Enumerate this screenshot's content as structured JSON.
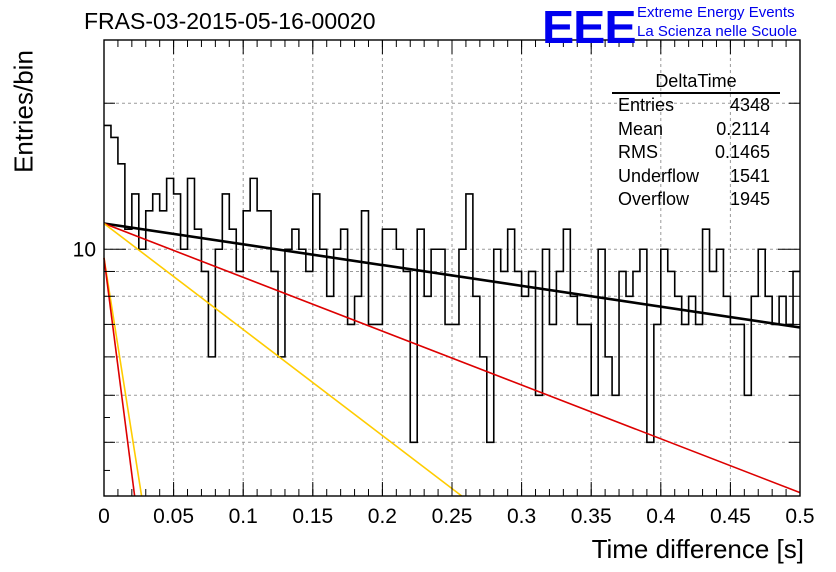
{
  "header": {
    "title": "FRAS-03-2015-05-16-00020",
    "logo_text": "EEE",
    "subtitle_line1": "Extreme Energy Events",
    "subtitle_line2": "La Scienza nelle Scuole"
  },
  "stats_box": {
    "title": "DeltaTime",
    "rows": [
      {
        "label": "Entries",
        "value": "4348"
      },
      {
        "label": "Mean",
        "value": "0.2114"
      },
      {
        "label": "RMS",
        "value": "0.1465"
      },
      {
        "label": "Underflow",
        "value": "1541"
      },
      {
        "label": "Overflow",
        "value": "1945"
      }
    ]
  },
  "colors": {
    "histogram": "#000000",
    "fit_black": "#000000",
    "fit_red": "#dd0000",
    "fit_yellow": "#ffcc00",
    "logo": "#0000ee"
  },
  "chart_data": {
    "type": "line",
    "title": "FRAS-03-2015-05-16-00020",
    "xlabel": "Time difference [s]",
    "ylabel": "Entries/bin",
    "y_scale": "log",
    "xlim": [
      0,
      0.5
    ],
    "ylim": [
      3.1,
      27
    ],
    "grid": true,
    "x_ticks": [
      "0",
      "0.05",
      "0.1",
      "0.15",
      "0.2",
      "0.25",
      "0.3",
      "0.35",
      "0.4",
      "0.45",
      "0.5"
    ],
    "y_tick_labels": [
      {
        "value": 10,
        "label": "10"
      }
    ],
    "histogram": {
      "bin_width": 0.005,
      "x_start": 0,
      "counts": [
        18,
        17,
        15,
        11,
        13,
        10,
        12,
        13,
        12,
        14,
        13,
        10,
        14,
        11,
        9,
        6,
        10,
        13,
        11,
        9,
        12,
        14,
        12,
        12,
        9,
        6,
        10,
        11,
        10,
        9,
        13,
        10,
        8,
        10,
        11,
        7,
        8,
        12,
        7,
        7,
        11,
        11,
        10,
        9,
        4,
        11,
        8,
        10,
        10,
        7,
        7,
        10,
        13,
        8,
        6,
        4,
        10,
        9,
        11,
        9,
        8,
        9,
        5,
        10,
        7,
        9,
        11,
        8,
        7,
        7,
        5,
        10,
        6,
        5,
        9,
        8,
        9,
        10,
        4,
        7,
        10,
        9,
        8,
        7,
        8,
        7,
        11,
        9,
        10,
        8,
        7,
        7,
        5,
        8,
        10,
        8,
        7,
        8,
        7,
        9
      ]
    },
    "series": [
      {
        "color": "black",
        "x": [
          0,
          0.5
        ],
        "y": [
          11.3,
          6.9
        ]
      },
      {
        "color": "red",
        "x": [
          0,
          0.5
        ],
        "y": [
          11.3,
          3.15
        ]
      },
      {
        "color": "yellow",
        "x": [
          0,
          0.257
        ],
        "y": [
          11.3,
          3.1
        ]
      },
      {
        "color": "yellow",
        "x": [
          0,
          0.027
        ],
        "y": [
          9.6,
          3.1
        ]
      },
      {
        "color": "red",
        "x": [
          0,
          0.022
        ],
        "y": [
          9.6,
          3.1
        ]
      }
    ]
  }
}
